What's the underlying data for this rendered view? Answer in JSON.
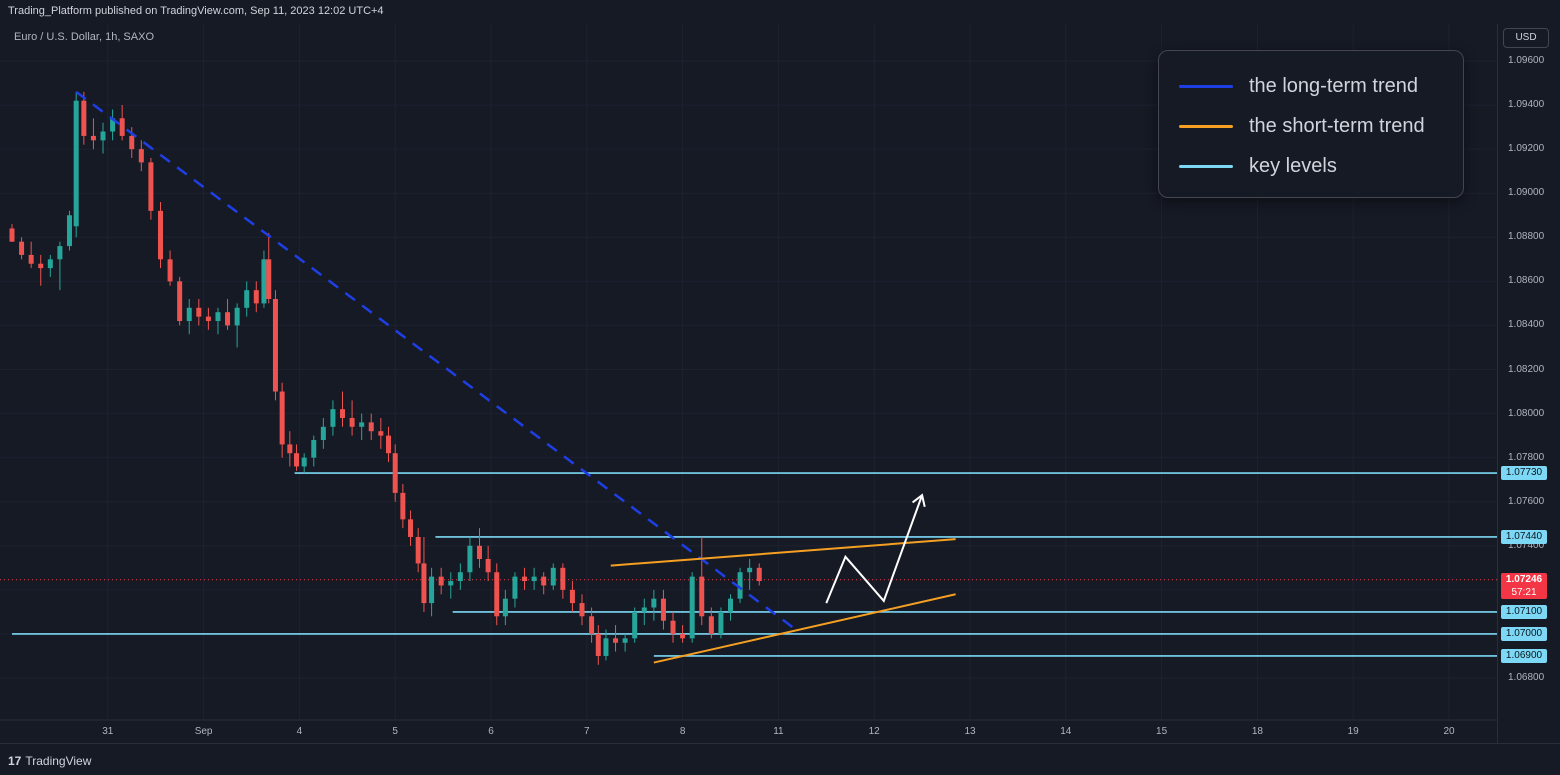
{
  "header": {
    "publish_text": "Trading_Platform published on TradingView.com, Sep 11, 2023 12:02 UTC+4",
    "symbol_title": "Euro / U.S. Dollar, 1h, SAXO",
    "currency": "USD"
  },
  "footer": {
    "brand_mark": "17",
    "brand": "TradingView"
  },
  "legend": [
    {
      "label": "the long-term trend",
      "color": "#1f3fe6"
    },
    {
      "label": "the short-term trend",
      "color": "#f5a023"
    },
    {
      "label": "key levels",
      "color": "#7cd8f5"
    }
  ],
  "colors": {
    "background": "#161a25",
    "grid": "#1e2230",
    "up": "#26a69a",
    "down": "#ef5350",
    "long_trend": "#1f3fe6",
    "short_trend": "#f5a023",
    "key_level": "#7cd8f5",
    "current_price": "#f23645",
    "projection": "#ffffff"
  },
  "chart_data": {
    "type": "candlestick",
    "title": "Euro / U.S. Dollar, 1h, SAXO",
    "x_ticks": [
      {
        "label": "31",
        "t": 1
      },
      {
        "label": "Sep",
        "t": 2
      },
      {
        "label": "4",
        "t": 3
      },
      {
        "label": "5",
        "t": 4
      },
      {
        "label": "6",
        "t": 5
      },
      {
        "label": "7",
        "t": 6
      },
      {
        "label": "8",
        "t": 7
      },
      {
        "label": "11",
        "t": 8
      },
      {
        "label": "12",
        "t": 9
      },
      {
        "label": "13",
        "t": 10
      },
      {
        "label": "14",
        "t": 11
      },
      {
        "label": "15",
        "t": 12
      },
      {
        "label": "18",
        "t": 13
      },
      {
        "label": "19",
        "t": 14
      },
      {
        "label": "20",
        "t": 15
      }
    ],
    "y_ticks": [
      "1.09600",
      "1.09400",
      "1.09200",
      "1.09000",
      "1.08800",
      "1.08600",
      "1.08400",
      "1.08200",
      "1.08000",
      "1.07800",
      "1.07600",
      "1.07400",
      "1.06800"
    ],
    "ylim": [
      1.0664,
      1.0974
    ],
    "xlim": [
      0.0,
      15.0
    ],
    "key_levels": [
      {
        "label": "1.07730",
        "value": 1.0773,
        "t_start": 2.95
      },
      {
        "label": "1.07440",
        "value": 1.0744,
        "t_start": 4.42
      },
      {
        "label": "1.07100",
        "value": 1.071,
        "t_start": 4.6
      },
      {
        "label": "1.07000",
        "value": 1.07,
        "t_start": 0.0
      },
      {
        "label": "1.06900",
        "value": 1.069,
        "t_start": 6.7
      }
    ],
    "current_price": {
      "label": "1.07246",
      "value": 1.07246,
      "countdown": "57:21"
    },
    "long_term_trend": [
      [
        0.67,
        1.0946
      ],
      [
        8.15,
        1.0703
      ]
    ],
    "short_term_trend_upper": [
      [
        6.25,
        1.0731
      ],
      [
        9.85,
        1.0743
      ]
    ],
    "short_term_trend_lower": [
      [
        6.7,
        1.0687
      ],
      [
        9.85,
        1.0718
      ]
    ],
    "projection_path": [
      [
        8.5,
        1.0714
      ],
      [
        8.7,
        1.0735
      ],
      [
        9.1,
        1.0715
      ],
      [
        9.5,
        1.0763
      ]
    ],
    "candles": [
      {
        "t": 0.0,
        "o": 1.0884,
        "h": 1.0886,
        "l": 1.0878,
        "c": 1.0878
      },
      {
        "t": 0.1,
        "o": 1.0878,
        "h": 1.088,
        "l": 1.087,
        "c": 1.0872
      },
      {
        "t": 0.2,
        "o": 1.0872,
        "h": 1.0878,
        "l": 1.0866,
        "c": 1.0868
      },
      {
        "t": 0.3,
        "o": 1.0868,
        "h": 1.0872,
        "l": 1.0858,
        "c": 1.0866
      },
      {
        "t": 0.4,
        "o": 1.0866,
        "h": 1.0872,
        "l": 1.0862,
        "c": 1.087
      },
      {
        "t": 0.5,
        "o": 1.087,
        "h": 1.0878,
        "l": 1.0856,
        "c": 1.0876
      },
      {
        "t": 0.6,
        "o": 1.0876,
        "h": 1.0892,
        "l": 1.0874,
        "c": 1.089
      },
      {
        "t": 0.67,
        "o": 1.0885,
        "h": 1.0946,
        "l": 1.088,
        "c": 1.0942
      },
      {
        "t": 0.75,
        "o": 1.0942,
        "h": 1.0946,
        "l": 1.0922,
        "c": 1.0926
      },
      {
        "t": 0.85,
        "o": 1.0926,
        "h": 1.0934,
        "l": 1.092,
        "c": 1.0924
      },
      {
        "t": 0.95,
        "o": 1.0924,
        "h": 1.0932,
        "l": 1.0918,
        "c": 1.0928
      },
      {
        "t": 1.05,
        "o": 1.0928,
        "h": 1.0938,
        "l": 1.0924,
        "c": 1.0934
      },
      {
        "t": 1.15,
        "o": 1.0934,
        "h": 1.094,
        "l": 1.0924,
        "c": 1.0926
      },
      {
        "t": 1.25,
        "o": 1.0926,
        "h": 1.093,
        "l": 1.0916,
        "c": 1.092
      },
      {
        "t": 1.35,
        "o": 1.092,
        "h": 1.0924,
        "l": 1.091,
        "c": 1.0914
      },
      {
        "t": 1.45,
        "o": 1.0914,
        "h": 1.0916,
        "l": 1.0888,
        "c": 1.0892
      },
      {
        "t": 1.55,
        "o": 1.0892,
        "h": 1.0896,
        "l": 1.0866,
        "c": 1.087
      },
      {
        "t": 1.65,
        "o": 1.087,
        "h": 1.0874,
        "l": 1.0858,
        "c": 1.086
      },
      {
        "t": 1.75,
        "o": 1.086,
        "h": 1.0862,
        "l": 1.084,
        "c": 1.0842
      },
      {
        "t": 1.85,
        "o": 1.0842,
        "h": 1.0852,
        "l": 1.0836,
        "c": 1.0848
      },
      {
        "t": 1.95,
        "o": 1.0848,
        "h": 1.0852,
        "l": 1.084,
        "c": 1.0844
      },
      {
        "t": 2.05,
        "o": 1.0844,
        "h": 1.0848,
        "l": 1.0838,
        "c": 1.0842
      },
      {
        "t": 2.15,
        "o": 1.0842,
        "h": 1.0848,
        "l": 1.0836,
        "c": 1.0846
      },
      {
        "t": 2.25,
        "o": 1.0846,
        "h": 1.0852,
        "l": 1.0838,
        "c": 1.084
      },
      {
        "t": 2.35,
        "o": 1.084,
        "h": 1.085,
        "l": 1.083,
        "c": 1.0848
      },
      {
        "t": 2.45,
        "o": 1.0848,
        "h": 1.086,
        "l": 1.0844,
        "c": 1.0856
      },
      {
        "t": 2.55,
        "o": 1.0856,
        "h": 1.086,
        "l": 1.0846,
        "c": 1.085
      },
      {
        "t": 2.63,
        "o": 1.085,
        "h": 1.0874,
        "l": 1.0848,
        "c": 1.087
      },
      {
        "t": 2.68,
        "o": 1.087,
        "h": 1.0882,
        "l": 1.085,
        "c": 1.0852
      },
      {
        "t": 2.75,
        "o": 1.0852,
        "h": 1.0856,
        "l": 1.0806,
        "c": 1.081
      },
      {
        "t": 2.82,
        "o": 1.081,
        "h": 1.0814,
        "l": 1.078,
        "c": 1.0786
      },
      {
        "t": 2.9,
        "o": 1.0786,
        "h": 1.0792,
        "l": 1.0776,
        "c": 1.0782
      },
      {
        "t": 2.97,
        "o": 1.0782,
        "h": 1.0786,
        "l": 1.0774,
        "c": 1.0776
      },
      {
        "t": 3.05,
        "o": 1.0776,
        "h": 1.0782,
        "l": 1.0773,
        "c": 1.078
      },
      {
        "t": 3.15,
        "o": 1.078,
        "h": 1.079,
        "l": 1.0776,
        "c": 1.0788
      },
      {
        "t": 3.25,
        "o": 1.0788,
        "h": 1.0798,
        "l": 1.0784,
        "c": 1.0794
      },
      {
        "t": 3.35,
        "o": 1.0794,
        "h": 1.0806,
        "l": 1.079,
        "c": 1.0802
      },
      {
        "t": 3.45,
        "o": 1.0802,
        "h": 1.081,
        "l": 1.0794,
        "c": 1.0798
      },
      {
        "t": 3.55,
        "o": 1.0798,
        "h": 1.0806,
        "l": 1.079,
        "c": 1.0794
      },
      {
        "t": 3.65,
        "o": 1.0794,
        "h": 1.08,
        "l": 1.0788,
        "c": 1.0796
      },
      {
        "t": 3.75,
        "o": 1.0796,
        "h": 1.08,
        "l": 1.0788,
        "c": 1.0792
      },
      {
        "t": 3.85,
        "o": 1.0792,
        "h": 1.0798,
        "l": 1.0784,
        "c": 1.079
      },
      {
        "t": 3.93,
        "o": 1.079,
        "h": 1.0794,
        "l": 1.0778,
        "c": 1.0782
      },
      {
        "t": 4.0,
        "o": 1.0782,
        "h": 1.0786,
        "l": 1.076,
        "c": 1.0764
      },
      {
        "t": 4.08,
        "o": 1.0764,
        "h": 1.0768,
        "l": 1.0748,
        "c": 1.0752
      },
      {
        "t": 4.16,
        "o": 1.0752,
        "h": 1.0756,
        "l": 1.074,
        "c": 1.0744
      },
      {
        "t": 4.24,
        "o": 1.0744,
        "h": 1.0748,
        "l": 1.0728,
        "c": 1.0732
      },
      {
        "t": 4.3,
        "o": 1.0732,
        "h": 1.0744,
        "l": 1.071,
        "c": 1.0714
      },
      {
        "t": 4.38,
        "o": 1.0714,
        "h": 1.073,
        "l": 1.0708,
        "c": 1.0726
      },
      {
        "t": 4.48,
        "o": 1.0726,
        "h": 1.073,
        "l": 1.0718,
        "c": 1.0722
      },
      {
        "t": 4.58,
        "o": 1.0722,
        "h": 1.0728,
        "l": 1.0716,
        "c": 1.0724
      },
      {
        "t": 4.68,
        "o": 1.0724,
        "h": 1.0732,
        "l": 1.072,
        "c": 1.0728
      },
      {
        "t": 4.78,
        "o": 1.0728,
        "h": 1.0744,
        "l": 1.0724,
        "c": 1.074
      },
      {
        "t": 4.88,
        "o": 1.074,
        "h": 1.0748,
        "l": 1.073,
        "c": 1.0734
      },
      {
        "t": 4.97,
        "o": 1.0734,
        "h": 1.074,
        "l": 1.0724,
        "c": 1.0728
      },
      {
        "t": 5.06,
        "o": 1.0728,
        "h": 1.0732,
        "l": 1.0704,
        "c": 1.0708
      },
      {
        "t": 5.15,
        "o": 1.0708,
        "h": 1.072,
        "l": 1.0704,
        "c": 1.0716
      },
      {
        "t": 5.25,
        "o": 1.0716,
        "h": 1.0728,
        "l": 1.0712,
        "c": 1.0726
      },
      {
        "t": 5.35,
        "o": 1.0726,
        "h": 1.073,
        "l": 1.072,
        "c": 1.0724
      },
      {
        "t": 5.45,
        "o": 1.0724,
        "h": 1.073,
        "l": 1.072,
        "c": 1.0726
      },
      {
        "t": 5.55,
        "o": 1.0726,
        "h": 1.0728,
        "l": 1.0718,
        "c": 1.0722
      },
      {
        "t": 5.65,
        "o": 1.0722,
        "h": 1.0732,
        "l": 1.072,
        "c": 1.073
      },
      {
        "t": 5.75,
        "o": 1.073,
        "h": 1.0732,
        "l": 1.0716,
        "c": 1.072
      },
      {
        "t": 5.85,
        "o": 1.072,
        "h": 1.0724,
        "l": 1.071,
        "c": 1.0714
      },
      {
        "t": 5.95,
        "o": 1.0714,
        "h": 1.0718,
        "l": 1.0704,
        "c": 1.0708
      },
      {
        "t": 6.05,
        "o": 1.0708,
        "h": 1.0712,
        "l": 1.0696,
        "c": 1.07
      },
      {
        "t": 6.12,
        "o": 1.07,
        "h": 1.0704,
        "l": 1.0686,
        "c": 1.069
      },
      {
        "t": 6.2,
        "o": 1.069,
        "h": 1.0702,
        "l": 1.0688,
        "c": 1.0698
      },
      {
        "t": 6.3,
        "o": 1.0698,
        "h": 1.0704,
        "l": 1.0692,
        "c": 1.0696
      },
      {
        "t": 6.4,
        "o": 1.0696,
        "h": 1.07,
        "l": 1.0692,
        "c": 1.0698
      },
      {
        "t": 6.5,
        "o": 1.0698,
        "h": 1.0712,
        "l": 1.0696,
        "c": 1.071
      },
      {
        "t": 6.6,
        "o": 1.071,
        "h": 1.0716,
        "l": 1.0704,
        "c": 1.0712
      },
      {
        "t": 6.7,
        "o": 1.0712,
        "h": 1.072,
        "l": 1.0706,
        "c": 1.0716
      },
      {
        "t": 6.8,
        "o": 1.0716,
        "h": 1.072,
        "l": 1.0702,
        "c": 1.0706
      },
      {
        "t": 6.9,
        "o": 1.0706,
        "h": 1.071,
        "l": 1.0696,
        "c": 1.07
      },
      {
        "t": 7.0,
        "o": 1.07,
        "h": 1.0704,
        "l": 1.0696,
        "c": 1.0698
      },
      {
        "t": 7.1,
        "o": 1.0698,
        "h": 1.0728,
        "l": 1.0696,
        "c": 1.0726
      },
      {
        "t": 7.2,
        "o": 1.0726,
        "h": 1.0744,
        "l": 1.0704,
        "c": 1.0708
      },
      {
        "t": 7.3,
        "o": 1.0708,
        "h": 1.0712,
        "l": 1.0698,
        "c": 1.07
      },
      {
        "t": 7.4,
        "o": 1.07,
        "h": 1.0712,
        "l": 1.0698,
        "c": 1.071
      },
      {
        "t": 7.5,
        "o": 1.071,
        "h": 1.0718,
        "l": 1.0706,
        "c": 1.0716
      },
      {
        "t": 7.6,
        "o": 1.0716,
        "h": 1.073,
        "l": 1.0714,
        "c": 1.0728
      },
      {
        "t": 7.7,
        "o": 1.0728,
        "h": 1.0734,
        "l": 1.072,
        "c": 1.073
      },
      {
        "t": 7.8,
        "o": 1.073,
        "h": 1.0732,
        "l": 1.0722,
        "c": 1.0724
      }
    ]
  }
}
